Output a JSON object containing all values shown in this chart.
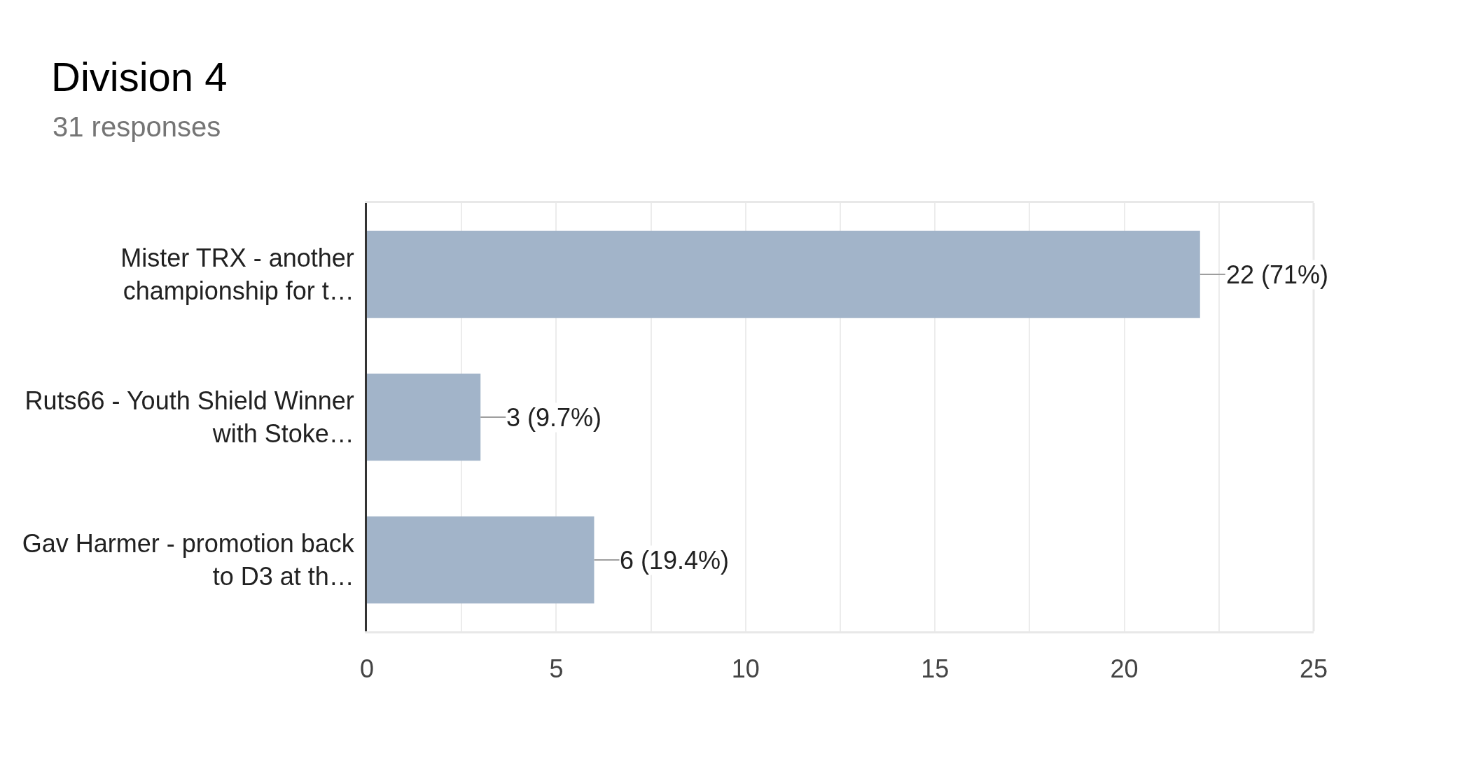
{
  "chart_data": {
    "type": "bar",
    "orientation": "horizontal",
    "title": "Division 4",
    "subtitle": "31 responses",
    "categories": [
      "Mister TRX - another\nchampionship for t…",
      "Ruts66 - Youth Shield Winner\nwith Stoke…",
      "Gav Harmer - promotion back\nto D3 at th…"
    ],
    "values": [
      22,
      3,
      6
    ],
    "color": "#a2b4c9",
    "value_labels": [
      "22 (71%)",
      "3 (9.7%)",
      "6 (19.4%)"
    ],
    "xlim": [
      0,
      25
    ],
    "xticks": [
      0,
      {
        "value": 2.5,
        "label": null
      },
      5,
      {
        "value": 7.5,
        "label": null
      },
      10,
      {
        "value": 12.5,
        "label": null
      },
      15,
      {
        "value": 17.5,
        "label": null
      },
      20,
      {
        "value": 22.5,
        "label": null
      },
      25
    ],
    "grid": "x"
  }
}
